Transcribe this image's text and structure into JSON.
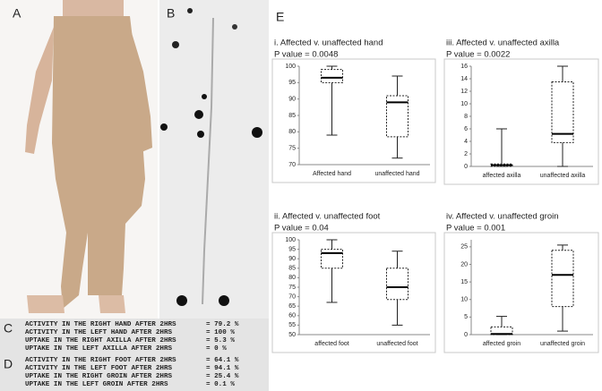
{
  "panels": {
    "a": {
      "label": "A"
    },
    "b": {
      "label": "B"
    },
    "c": {
      "label": "C",
      "rows": [
        [
          "ACTIVITY IN THE RIGHT HAND AFTER 2HRS",
          "= 79.2 %"
        ],
        [
          "ACTIVITY IN THE LEFT HAND AFTER 2HRS",
          "= 100 %"
        ],
        [
          "UPTAKE IN THE RIGHT AXILLA AFTER 2HRS",
          "= 5.3 %"
        ],
        [
          "UPTAKE IN THE LEFT AXILLA AFTER 2HRS",
          "= 0 %"
        ]
      ]
    },
    "d": {
      "label": "D",
      "rows": [
        [
          "ACTIVITY IN THE RIGHT FOOT AFTER 2HRS",
          "= 64.1 %"
        ],
        [
          "ACTIVITY IN THE LEFT FOOT AFTER 2HRS",
          "= 94.1 %"
        ],
        [
          "UPTAKE IN THE RIGHT GROIN AFTER 2HRS",
          "= 25.4 %"
        ],
        [
          "UPTAKE IN THE LEFT GROIN AFTER 2HRS",
          "= 0.1 %"
        ]
      ]
    },
    "e": {
      "label": "E"
    }
  },
  "chart_data": [
    {
      "type": "box",
      "title": "i. Affected v. unaffected hand",
      "subtitle": "P value = 0.0048",
      "categories": [
        "Affected hand",
        "unaffected hand"
      ],
      "boxes": [
        {
          "min": 79,
          "q1": 95,
          "median": 96.5,
          "q3": 99,
          "max": 100
        },
        {
          "min": 72,
          "q1": 78.5,
          "median": 89,
          "q3": 91,
          "max": 97
        }
      ],
      "ylim": [
        70,
        100
      ],
      "yticks": [
        70,
        75,
        80,
        85,
        90,
        95,
        100
      ]
    },
    {
      "type": "box",
      "title": "iii. Affected v. unaffected axilla",
      "subtitle": "P value = 0.0022",
      "categories": [
        "affected axilla",
        "unaffected axilla"
      ],
      "boxes": [
        {
          "min": 0,
          "q1": 0,
          "median": 0.2,
          "q3": 0.4,
          "max": 6
        },
        {
          "min": 0,
          "q1": 3.8,
          "median": 5.2,
          "q3": 13.5,
          "max": 16
        }
      ],
      "ylim": [
        0,
        16
      ],
      "yticks": [
        0,
        2,
        4,
        6,
        8,
        10,
        12,
        14,
        16
      ]
    },
    {
      "type": "box",
      "title": "ii. Affected v. unaffected foot",
      "subtitle": "P value = 0.04",
      "categories": [
        "affected foot",
        "unaffected foot"
      ],
      "boxes": [
        {
          "min": 67,
          "q1": 85,
          "median": 93,
          "q3": 95,
          "max": 100
        },
        {
          "min": 55,
          "q1": 68.5,
          "median": 75,
          "q3": 85,
          "max": 94
        }
      ],
      "ylim": [
        50,
        100
      ],
      "yticks": [
        50,
        55,
        60,
        65,
        70,
        75,
        80,
        85,
        90,
        95,
        100
      ]
    },
    {
      "type": "box",
      "title": "iv. Affected v. unaffected groin",
      "subtitle": "P value = 0.001",
      "categories": [
        "affected groin",
        "unaffected groin"
      ],
      "boxes": [
        {
          "min": 0,
          "q1": 0,
          "median": 0.2,
          "q3": 2.2,
          "max": 5.2
        },
        {
          "min": 1,
          "q1": 8,
          "median": 17,
          "q3": 24,
          "max": 25.5
        }
      ],
      "ylim": [
        0,
        27
      ],
      "yticks": [
        0,
        5,
        10,
        15,
        20,
        25
      ]
    }
  ]
}
